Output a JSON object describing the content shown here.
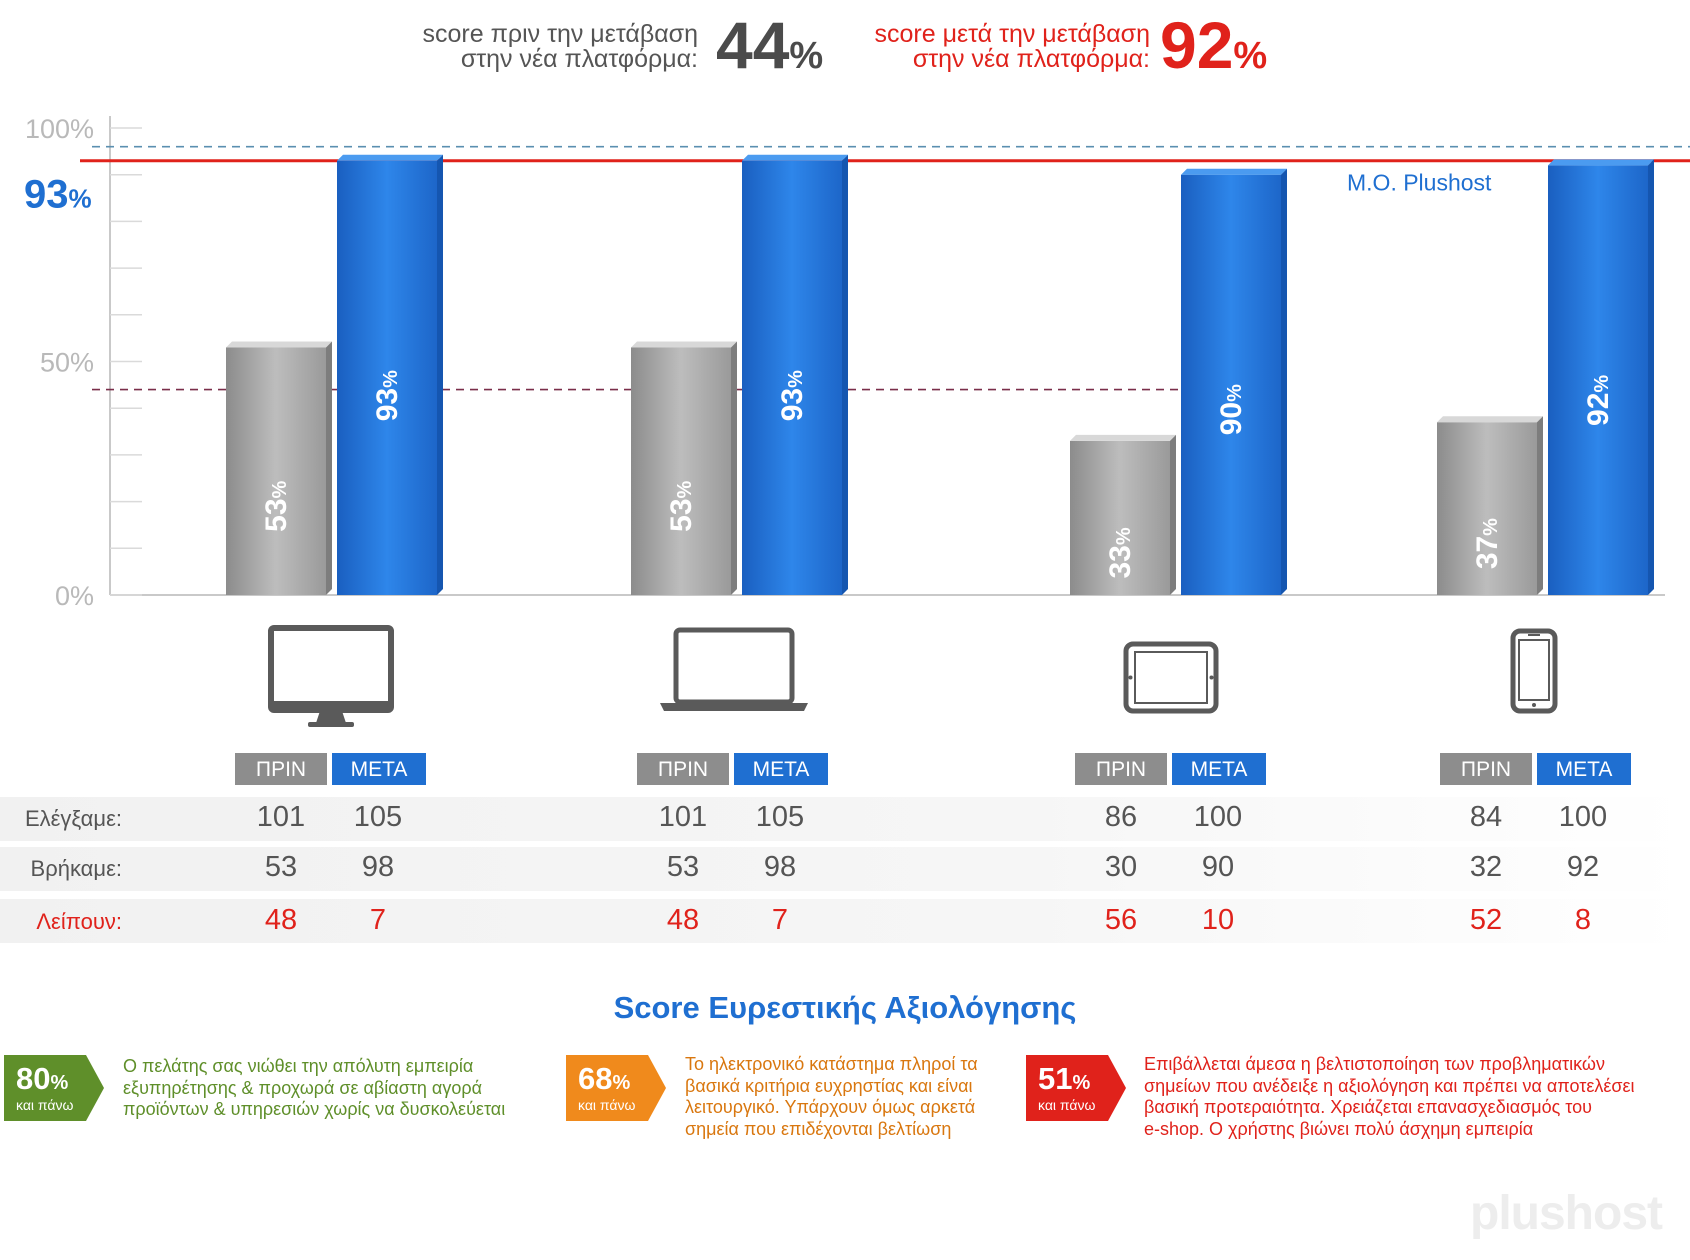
{
  "header": {
    "before_label_line1": "score πριν την μετάβαση",
    "before_label_line2": "στην νέα πλατφόρμα:",
    "before_value": "44",
    "after_label_line1": "score μετά την μετάβαση",
    "after_label_line2": "στην νέα πλατφόρμα:",
    "after_value": "92",
    "pct": "%"
  },
  "chart_data": {
    "type": "bar",
    "categories": [
      "Desktop",
      "Laptop",
      "Tablet",
      "Mobile"
    ],
    "series": [
      {
        "name": "ΠΡΙΝ",
        "values": [
          53,
          53,
          33,
          37
        ],
        "color": "#a8a8a8"
      },
      {
        "name": "ΜΕΤΑ",
        "values": [
          93,
          93,
          90,
          92
        ],
        "color": "#1f6fd1"
      }
    ],
    "value_labels": {
      "before": [
        "53",
        "53",
        "33",
        "37"
      ],
      "after": [
        "93",
        "93",
        "90",
        "92"
      ],
      "suffix": "%"
    },
    "ylim": [
      0,
      100
    ],
    "yticks": [
      "100%",
      "50%",
      "0%"
    ],
    "reference_lines": [
      {
        "value": 93,
        "label": "93",
        "label_suffix": "%",
        "color": "#e0221b",
        "style": "solid",
        "note": "M.O. Plushost"
      },
      {
        "value": 96,
        "color": "#5a8fb0",
        "style": "dashed"
      },
      {
        "value": 44,
        "color": "#7a2e4a",
        "style": "dashed"
      }
    ],
    "grid": false
  },
  "devices": [
    "desktop-icon",
    "laptop-icon",
    "tablet-icon",
    "smartphone-icon"
  ],
  "table": {
    "tag_before": "ΠΡΙΝ",
    "tag_after": "ΜΕΤΑ",
    "row_labels": [
      "Ελέγξαμε:",
      "Βρήκαμε:",
      "Λείπουν:"
    ],
    "groups": [
      {
        "checked": [
          "101",
          "105"
        ],
        "found": [
          "53",
          "98"
        ],
        "missing": [
          "48",
          "7"
        ]
      },
      {
        "checked": [
          "101",
          "105"
        ],
        "found": [
          "53",
          "98"
        ],
        "missing": [
          "48",
          "7"
        ]
      },
      {
        "checked": [
          "86",
          "100"
        ],
        "found": [
          "30",
          "90"
        ],
        "missing": [
          "56",
          "10"
        ]
      },
      {
        "checked": [
          "84",
          "100"
        ],
        "found": [
          "32",
          "92"
        ],
        "missing": [
          "52",
          "8"
        ]
      }
    ]
  },
  "legend": {
    "title": "Score Ευρεστικής Αξιολόγησης",
    "items": [
      {
        "value": "80",
        "pct": "%",
        "sub": "και πάνω",
        "color": "#5f8f2a",
        "text_color": "#5f8f2a",
        "lines": [
          "Ο πελάτης σας νιώθει την απόλυτη εμπειρία",
          "εξυπηρέτησης & προχωρά σε αβίαστη αγορά",
          "προϊόντων & υπηρεσιών χωρίς να δυσκολεύεται"
        ]
      },
      {
        "value": "68",
        "pct": "%",
        "sub": "και πάνω",
        "color": "#f08a1c",
        "text_color": "#d9770f",
        "lines": [
          "Το ηλεκτρονικό κατάστημα πληροί τα",
          "βασικά κριτήρια ευχρηστίας και είναι",
          "λειτουργικό. Υπάρχουν όμως αρκετά",
          "σημεία που επιδέχονται βελτίωση"
        ]
      },
      {
        "value": "51",
        "pct": "%",
        "sub": "και πάνω",
        "color": "#e0221b",
        "text_color": "#e0221b",
        "lines": [
          "Επιβάλλεται άμεσα η βελτιστοποίηση των προβληματικών",
          "σημείων που ανέδειξε η αξιολόγηση και πρέπει να αποτελέσει",
          "βασική προτεραιότητα. Χρειάζεται επανασχεδιασμός του",
          "e-shop. Ο χρήστης βιώνει πολύ άσχημη εμπειρία"
        ]
      }
    ]
  },
  "watermark": "plushost"
}
